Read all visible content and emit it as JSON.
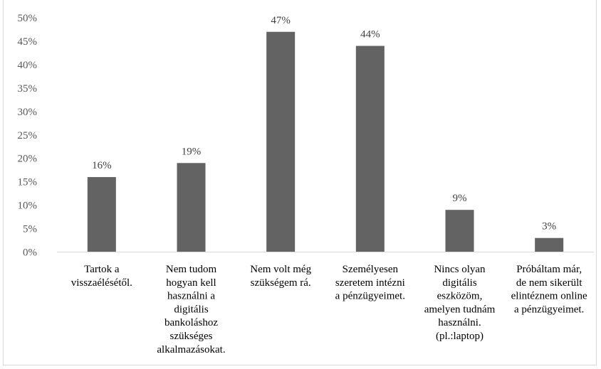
{
  "chart_data": {
    "type": "bar",
    "categories": [
      [
        "Tartok a",
        "visszaélésétől."
      ],
      [
        "Nem tudom",
        "hogyan kell",
        "használni a",
        "digitális",
        "bankoláshoz",
        "szükséges",
        "alkalmazásokat."
      ],
      [
        "Nem volt még",
        "szükségem rá."
      ],
      [
        "Személyesen",
        "szeretem intézni",
        "a pénzügyeimet."
      ],
      [
        "Nincs olyan",
        "digitális",
        "eszközöm,",
        "amelyen tudnám",
        "használni.",
        "(pl.:laptop)"
      ],
      [
        "Próbáltam már,",
        "de nem sikerült",
        "elintéznem online",
        "a pénzügyeimet."
      ]
    ],
    "values": [
      16,
      19,
      47,
      44,
      9,
      3
    ],
    "data_labels": [
      "16%",
      "19%",
      "47%",
      "44%",
      "9%",
      "3%"
    ],
    "y_ticks": [
      "0%",
      "5%",
      "10%",
      "15%",
      "20%",
      "25%",
      "30%",
      "35%",
      "40%",
      "45%",
      "50%"
    ],
    "ylim": [
      0,
      50
    ],
    "grid": false,
    "bar_color": "#636363",
    "axis_color": "#d9d9d9"
  }
}
